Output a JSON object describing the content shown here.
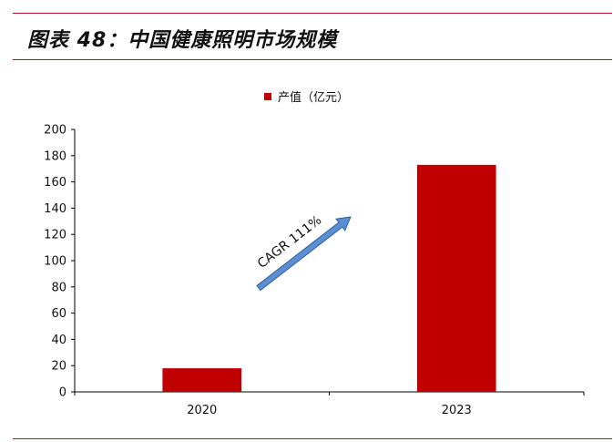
{
  "page": {
    "title": "图表 48：中国健康照明市场规模"
  },
  "chart_data": {
    "type": "bar",
    "title": "",
    "categories": [
      "2020",
      "2023"
    ],
    "series": [
      {
        "name": "产值（亿元）",
        "values": [
          18,
          173
        ]
      }
    ],
    "xlabel": "",
    "ylabel": "",
    "ylim": [
      0,
      200
    ],
    "yticks": [
      0,
      20,
      40,
      60,
      80,
      100,
      120,
      140,
      160,
      180,
      200
    ],
    "legend": "top-center",
    "grid": false,
    "annotation": {
      "text": "CAGR 111%",
      "shape": "arrow"
    },
    "colors": {
      "bar": "#c00000",
      "arrow": "#5b8fd2",
      "arrow_edge": "#2e5f9e"
    }
  }
}
